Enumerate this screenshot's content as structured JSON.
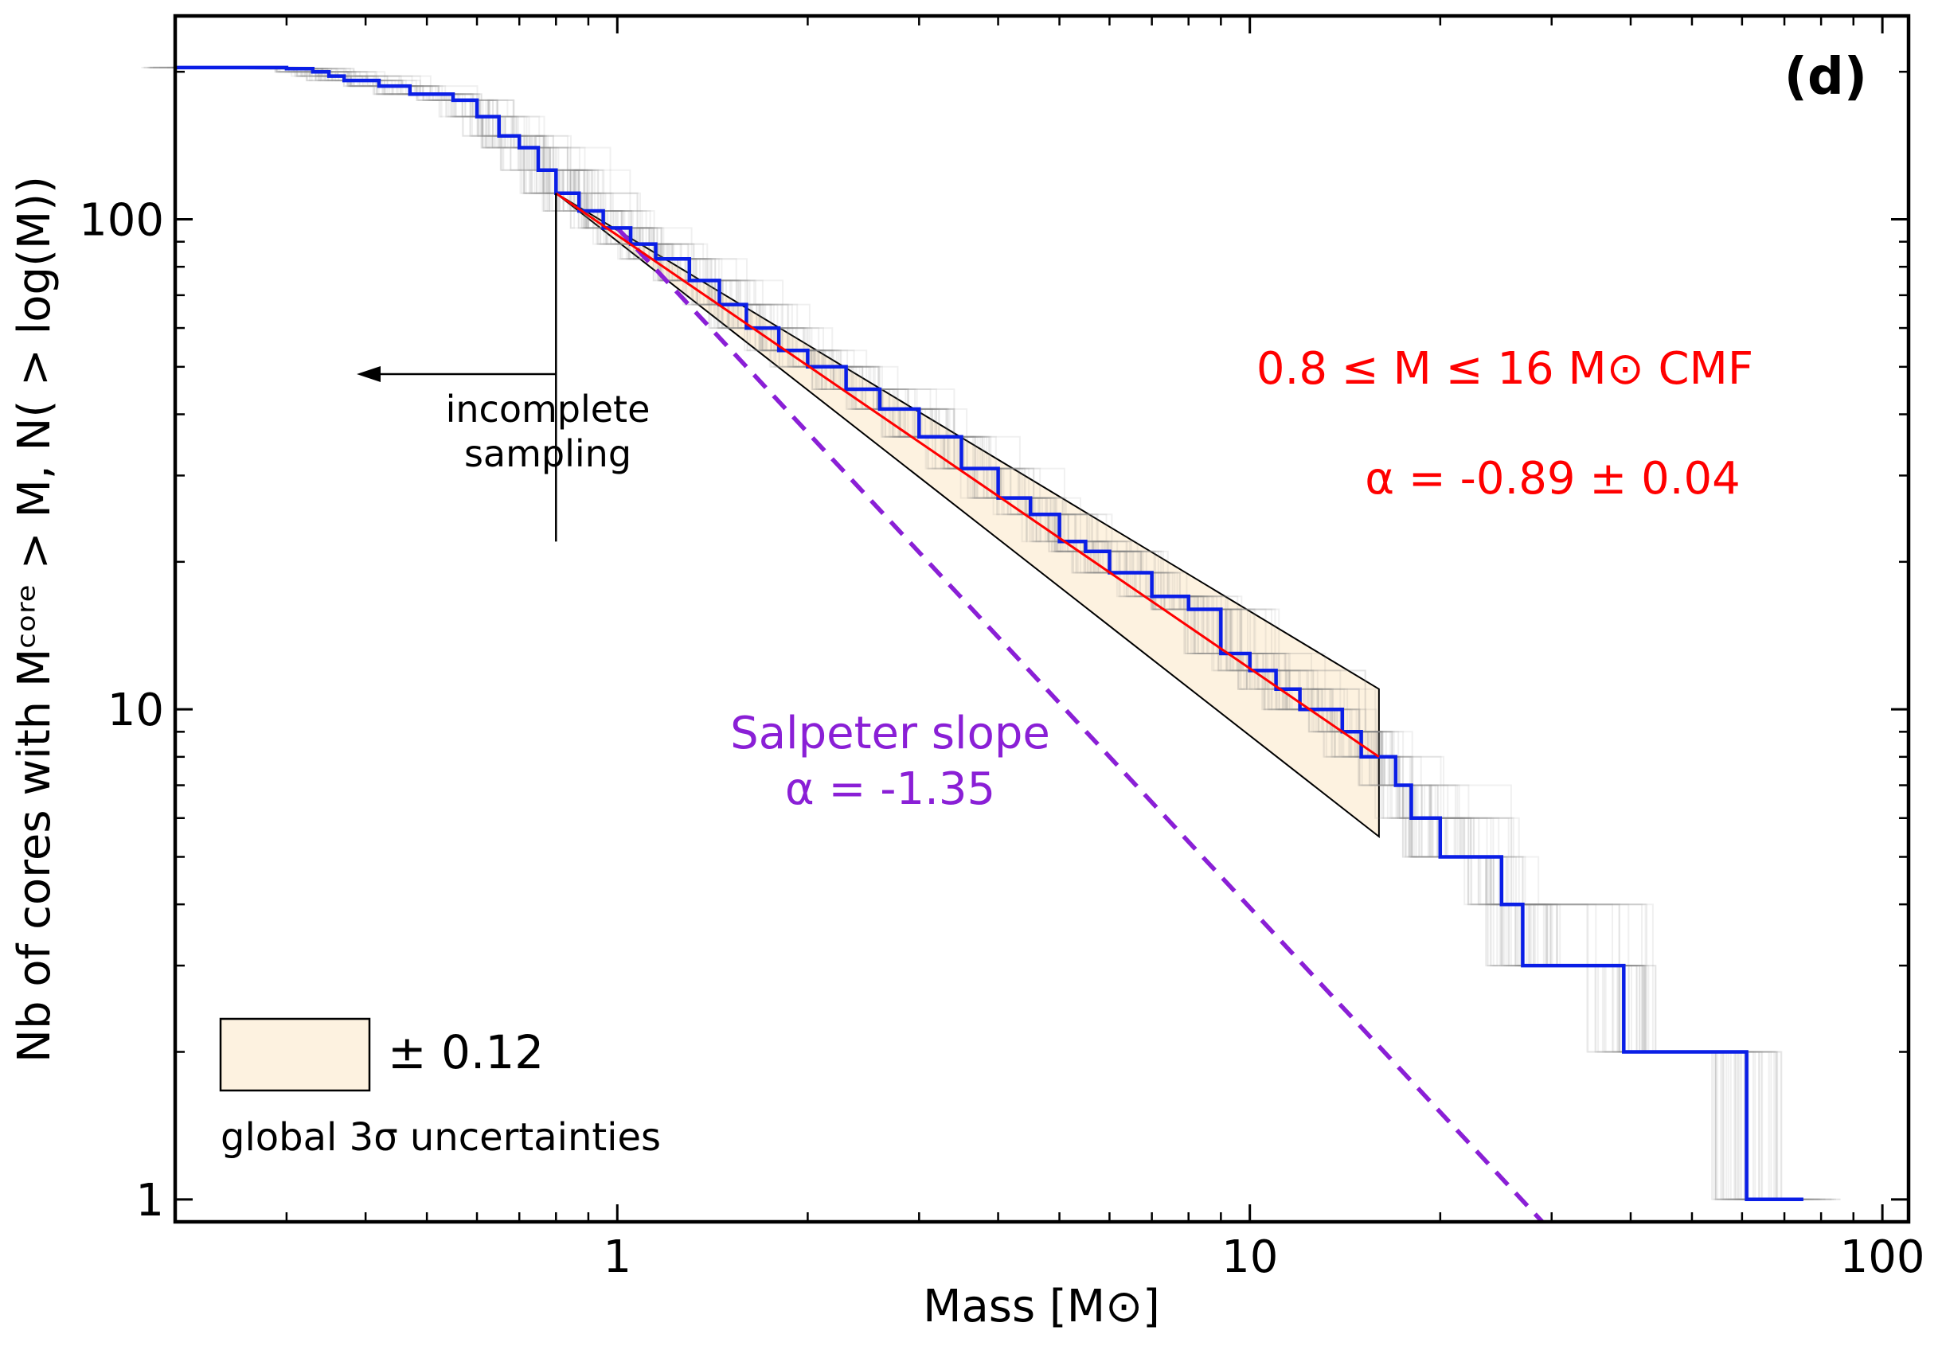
{
  "chart_data": {
    "type": "line",
    "panel_label": "(d)",
    "xlabel": "Mass [M⊙]",
    "ylabel": "Nb of cores with Mᶜᵒʳᵉ > M, N( > log(M))",
    "xscale": "log",
    "yscale": "log",
    "xlim": [
      0.2,
      110
    ],
    "ylim": [
      0.9,
      260
    ],
    "x_ticks": [
      {
        "value": 1,
        "label": "1"
      },
      {
        "value": 10,
        "label": "10"
      },
      {
        "value": 100,
        "label": "100"
      }
    ],
    "y_ticks": [
      {
        "value": 1,
        "label": "1"
      },
      {
        "value": 10,
        "label": "10"
      },
      {
        "value": 100,
        "label": "100"
      }
    ],
    "grid": false,
    "series": [
      {
        "role": "observed",
        "color": "#0a1ee6",
        "style": "step",
        "points": [
          [
            0.2,
            204
          ],
          [
            0.25,
            204
          ],
          [
            0.3,
            203
          ],
          [
            0.33,
            200
          ],
          [
            0.35,
            196
          ],
          [
            0.37,
            192
          ],
          [
            0.42,
            187
          ],
          [
            0.47,
            180
          ],
          [
            0.55,
            175
          ],
          [
            0.6,
            162
          ],
          [
            0.65,
            148
          ],
          [
            0.7,
            140
          ],
          [
            0.75,
            126
          ],
          [
            0.8,
            113
          ],
          [
            0.87,
            104
          ],
          [
            0.95,
            96
          ],
          [
            1.05,
            89
          ],
          [
            1.15,
            83
          ],
          [
            1.3,
            75
          ],
          [
            1.45,
            67
          ],
          [
            1.6,
            60
          ],
          [
            1.8,
            54
          ],
          [
            2.0,
            50
          ],
          [
            2.3,
            45
          ],
          [
            2.6,
            41
          ],
          [
            3.0,
            36
          ],
          [
            3.5,
            31
          ],
          [
            4.0,
            27
          ],
          [
            4.5,
            25
          ],
          [
            5.0,
            22
          ],
          [
            5.5,
            21
          ],
          [
            6.0,
            19
          ],
          [
            7.0,
            17
          ],
          [
            8.0,
            16
          ],
          [
            9.0,
            13
          ],
          [
            10.0,
            12
          ],
          [
            11.0,
            11
          ],
          [
            12.0,
            10
          ],
          [
            14.0,
            9
          ],
          [
            15.0,
            8
          ],
          [
            17.0,
            7
          ],
          [
            18.0,
            6
          ],
          [
            20.0,
            5
          ],
          [
            25.0,
            4
          ],
          [
            27.0,
            3
          ],
          [
            39.0,
            2
          ],
          [
            61.0,
            1
          ],
          [
            75.0,
            1
          ]
        ]
      },
      {
        "name": "0.8 ≤ M ≤ 16 M⊙  CMF",
        "role": "fit",
        "color": "#ff0000",
        "x": [
          0.8,
          16
        ],
        "y": [
          113,
          8
        ]
      },
      {
        "name": "Salpeter slope",
        "role": "reference",
        "color": "#8a1fd6",
        "style": "dashed",
        "x": [
          1.0,
          29
        ],
        "y": [
          96,
          0.9
        ]
      }
    ],
    "uncertainty_band": {
      "color": "#fdf2e0",
      "x_range": [
        0.8,
        16
      ],
      "lower_at_end": 5.5,
      "upper_at_end": 11
    },
    "completeness_limit": {
      "x": 0.8,
      "y_range": [
        22,
        113
      ],
      "label_line1": "incomplete",
      "label_line2": "sampling"
    },
    "annotations": {
      "fit_range": "0.8 ≤ M ≤ 16 M⊙  CMF",
      "fit_alpha": "α = -0.89 ± 0.04",
      "salpeter_label": "Salpeter slope",
      "salpeter_alpha": "α = -1.35",
      "band_legend_value": "± 0.12",
      "band_legend_text": "global 3σ uncertainties"
    }
  }
}
